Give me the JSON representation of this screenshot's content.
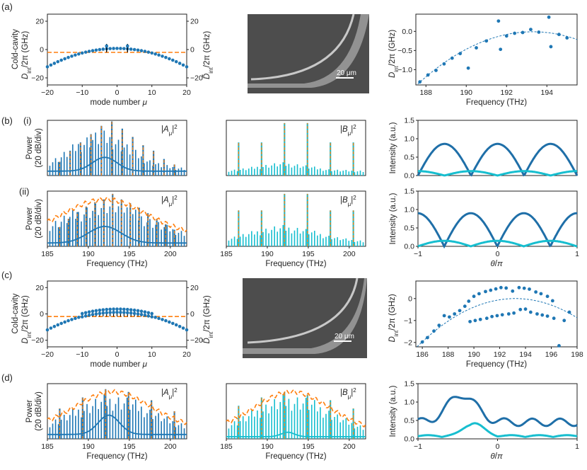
{
  "panel_labels": {
    "a": "(a)",
    "b": "(b)",
    "b_i": "(i)",
    "b_ii": "(ii)",
    "c": "(c)",
    "d": "(d)"
  },
  "sem_scalebar": "20 μm",
  "colors": {
    "blue": "#1f77b4",
    "dark_blue": "#1f6fa8",
    "cyan": "#17becf",
    "orange": "#ff7f0e",
    "black": "#000000"
  },
  "chart_data": [
    {
      "id": "a_dint",
      "type": "scatter",
      "xlabel": "mode number μ",
      "ylabel_line1": "Cold-cavity",
      "ylabel_line2": "D_int/2π (GHz)",
      "y2label": "D̃_int/2π (GHz)",
      "xlim": [
        -20,
        20
      ],
      "ylim": [
        -25,
        25
      ],
      "xticks": [
        -20,
        -10,
        0,
        10,
        20
      ],
      "yticks": [
        -20,
        0,
        20
      ],
      "y2ticks": [
        -20,
        0,
        20
      ],
      "curvature": 0.0325,
      "offset": 0.8,
      "flat_line": -2,
      "split_modes": [
        {
          "mu": -3,
          "hi": 2.5,
          "lo": -0.5
        },
        {
          "mu": 3,
          "hi": 2.5,
          "lo": -0.5
        }
      ]
    },
    {
      "id": "a_fit",
      "type": "scatter",
      "xlabel": "Frequency (THz)",
      "ylabel": "D_int/2π (GHz)",
      "xlim": [
        187.5,
        195.5
      ],
      "ylim": [
        -1.4,
        0.45
      ],
      "xticks": [
        188,
        190,
        192,
        194
      ],
      "yticks": [
        0.0,
        -0.5,
        -1.0
      ],
      "points": [
        [
          187.7,
          -1.32
        ],
        [
          188.1,
          -1.14
        ],
        [
          188.5,
          -1.02
        ],
        [
          188.9,
          -0.85
        ],
        [
          189.3,
          -0.7
        ],
        [
          189.7,
          -0.58
        ],
        [
          190.1,
          -0.96
        ],
        [
          190.5,
          -0.43
        ],
        [
          191.0,
          -0.25
        ],
        [
          191.6,
          0.27
        ],
        [
          191.7,
          -0.47
        ],
        [
          192.0,
          -0.12
        ],
        [
          192.4,
          -0.05
        ],
        [
          192.8,
          -0.03
        ],
        [
          193.2,
          0.05
        ],
        [
          193.6,
          -0.02
        ],
        [
          194.1,
          0.37
        ],
        [
          194.2,
          -0.4
        ],
        [
          194.6,
          -0.08
        ],
        [
          195.0,
          -0.17
        ]
      ],
      "fit": {
        "vertex_x": 193.3,
        "vertex_y": -0.01,
        "a": 0.042
      }
    },
    {
      "id": "b_spec",
      "type": "line",
      "xlabel": "Frequency (THz)",
      "ylabel_line1": "Power",
      "ylabel_line2": "(20 dB/div)",
      "xlim": [
        185,
        202
      ],
      "xticks": [
        185,
        190,
        195,
        200
      ],
      "rows": [
        {
          "A_label": "|A_μ|²",
          "B_label": "|B_μ|²",
          "A_peaks": [
            0.25,
            0.45,
            0.6,
            0.75,
            0.9,
            0.98,
            0.85,
            0.7,
            0.55,
            0.45,
            0.3,
            0.2
          ],
          "B_peaks": [
            0.6,
            0.6,
            0.95,
            0.95,
            0.6,
            0.6
          ]
        },
        {
          "A_label": "|A_μ|²",
          "B_label": "|B_μ|²",
          "A_peaks": [
            0.35,
            0.5,
            0.62,
            0.72,
            0.8,
            0.85,
            0.95,
            0.85,
            0.78,
            0.7,
            0.6,
            0.5,
            0.4,
            0.3
          ],
          "B_peaks": [
            0.65,
            0.65,
            0.95,
            0.95,
            0.65,
            0.65
          ]
        }
      ]
    },
    {
      "id": "b_int",
      "type": "line",
      "xlabel": "θ/π",
      "ylabel": "Intensity (a.u.)",
      "xlim": [
        -1,
        1
      ],
      "ylim": [
        0,
        1.5
      ],
      "xticks": [
        -1,
        0,
        1
      ],
      "yticks": [
        0.0,
        0.5,
        1.0,
        1.5
      ],
      "rows": [
        {
          "dark_amp": 0.86,
          "light_amp": 0.12,
          "phase": 0.0
        },
        {
          "dark_amp": 0.9,
          "light_amp": 0.15,
          "phase": 0.33
        }
      ]
    },
    {
      "id": "c_dint",
      "type": "scatter",
      "xlabel": "mode number μ",
      "ylabel_line1": "Cold-cavity",
      "ylabel_line2": "D_int/2π (GHz)",
      "y2label": "D̃_int/2π (GHz)",
      "xlim": [
        -20,
        20
      ],
      "ylim": [
        -25,
        25
      ],
      "xticks": [
        -20,
        -10,
        0,
        10,
        20
      ],
      "yticks": [
        -20,
        0,
        20
      ],
      "y2ticks": [
        -20,
        0,
        20
      ],
      "curvature": 0.034,
      "offset": 1.5,
      "split": 2.2,
      "split_range": [
        -10,
        10
      ],
      "flat_line": -2
    },
    {
      "id": "c_fit",
      "type": "scatter",
      "xlabel": "Frequency (THz)",
      "ylabel": "D_int/2π (GHz)",
      "xlim": [
        185.5,
        198
      ],
      "ylim": [
        -2.2,
        0.8
      ],
      "xticks": [
        186,
        188,
        190,
        192,
        194,
        196,
        198
      ],
      "yticks": [
        0,
        -1,
        -2
      ],
      "fit": {
        "vertex_x": 193.2,
        "vertex_y": 0.0,
        "a": 0.038
      },
      "upper": [
        [
          189.6,
          -0.12
        ],
        [
          190.0,
          0.1
        ],
        [
          190.4,
          0.22
        ],
        [
          190.9,
          0.32
        ],
        [
          191.3,
          0.38
        ],
        [
          191.7,
          0.44
        ],
        [
          192.1,
          0.5
        ],
        [
          192.5,
          0.48
        ],
        [
          193.0,
          0.34
        ],
        [
          193.5,
          0.5
        ],
        [
          193.9,
          0.47
        ],
        [
          194.3,
          0.43
        ],
        [
          194.8,
          0.3
        ],
        [
          195.2,
          0.22
        ],
        [
          195.7,
          0.1
        ],
        [
          196.1,
          -0.1
        ]
      ],
      "lower": [
        [
          186.0,
          -1.98
        ],
        [
          186.4,
          -1.78
        ],
        [
          186.9,
          -1.48
        ],
        [
          187.3,
          -1.22
        ],
        [
          187.7,
          -0.78
        ],
        [
          188.1,
          -0.84
        ],
        [
          188.5,
          -0.7
        ],
        [
          188.9,
          -0.55
        ],
        [
          189.3,
          -0.35
        ],
        [
          189.7,
          -1.05
        ],
        [
          190.1,
          -1.0
        ],
        [
          190.5,
          -0.95
        ],
        [
          191.0,
          -0.9
        ],
        [
          191.4,
          -0.82
        ],
        [
          191.8,
          -0.78
        ],
        [
          192.2,
          -0.74
        ],
        [
          192.7,
          -0.7
        ],
        [
          193.1,
          -0.66
        ],
        [
          193.6,
          -0.5
        ],
        [
          194.0,
          -0.48
        ],
        [
          194.4,
          -0.62
        ],
        [
          194.9,
          -0.7
        ],
        [
          195.3,
          -0.75
        ],
        [
          195.7,
          -0.8
        ],
        [
          196.2,
          -0.9
        ],
        [
          196.6,
          -2.15
        ],
        [
          197.0,
          -1.0
        ],
        [
          197.4,
          -0.62
        ]
      ]
    },
    {
      "id": "d_spec",
      "type": "line",
      "xlabel": "Frequency (THz)",
      "ylabel_line1": "Power",
      "ylabel_line2": "(20 dB/div)",
      "xlim": [
        185,
        202
      ],
      "xticks": [
        185,
        190,
        195,
        200
      ],
      "A_label": "|A_μ|²",
      "B_label": "|B_μ|²"
    },
    {
      "id": "d_int",
      "type": "line",
      "xlabel": "θ/π",
      "ylabel": "Intensity (a.u.)",
      "xlim": [
        -1,
        1
      ],
      "ylim": [
        0,
        1.5
      ],
      "xticks": [
        -1,
        0,
        1
      ],
      "yticks": [
        0.0,
        0.5,
        1.0,
        1.5
      ]
    }
  ]
}
